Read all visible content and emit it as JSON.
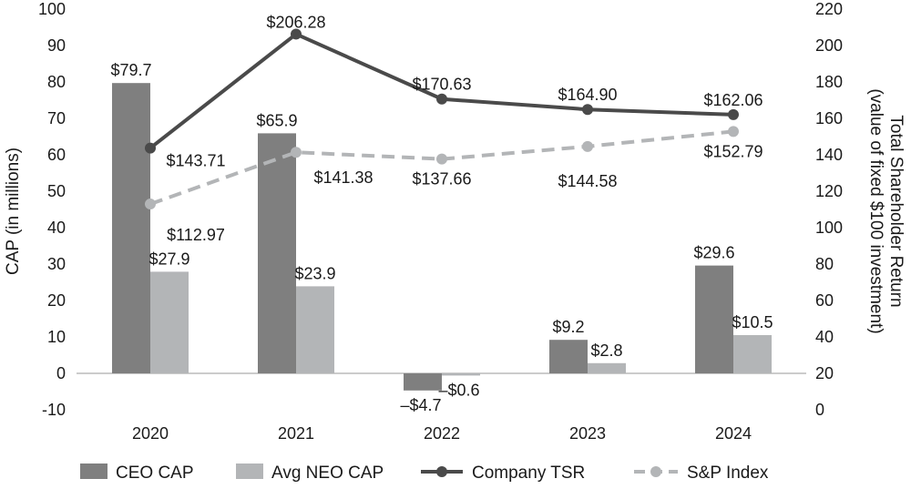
{
  "chart_data": {
    "type": "bar+line",
    "categories": [
      "2020",
      "2021",
      "2022",
      "2023",
      "2024"
    ],
    "left_axis": {
      "title": "CAP (in millions)",
      "ticks": [
        "100",
        "90",
        "80",
        "70",
        "60",
        "50",
        "40",
        "30",
        "20",
        "10",
        "0",
        "-10"
      ],
      "ylim": [
        -10,
        100
      ]
    },
    "right_axis": {
      "title_line1": "Total Shareholder Return",
      "title_line2": "(value of fixed $100 investment)",
      "ticks": [
        "220",
        "200",
        "180",
        "160",
        "140",
        "120",
        "100",
        "80",
        "60",
        "40",
        "20",
        "0"
      ],
      "ylim": [
        0,
        220
      ]
    },
    "bar_series": [
      {
        "name": "CEO CAP",
        "color": "#7f7f7f",
        "values": [
          79.7,
          65.9,
          -4.7,
          9.2,
          29.6
        ],
        "labels": [
          "$79.7",
          "$65.9",
          "–$4.7",
          "$9.2",
          "$29.6"
        ]
      },
      {
        "name": "Avg NEO CAP",
        "color": "#b3b5b7",
        "values": [
          27.9,
          23.9,
          -0.6,
          2.8,
          10.5
        ],
        "labels": [
          "$27.9",
          "$23.9",
          "–$0.6",
          "$2.8",
          "$10.5"
        ]
      }
    ],
    "line_series": [
      {
        "name": "Company TSR",
        "color": "#4a4a4a",
        "style": "solid",
        "values": [
          143.71,
          206.28,
          170.63,
          164.9,
          162.06
        ],
        "labels": [
          "$143.71",
          "$206.28",
          "$170.63",
          "$164.90",
          "$162.06"
        ]
      },
      {
        "name": "S&P Index",
        "color": "#b3b5b7",
        "style": "dashed",
        "values": [
          112.97,
          141.38,
          137.66,
          144.58,
          152.79
        ],
        "labels": [
          "$112.97",
          "$141.38",
          "$137.66",
          "$144.58",
          "$152.79"
        ]
      }
    ],
    "legend": {
      "placement": "bottom",
      "items": [
        "CEO CAP",
        "Avg NEO CAP",
        "Company TSR",
        "S&P Index"
      ]
    },
    "grid": false
  }
}
